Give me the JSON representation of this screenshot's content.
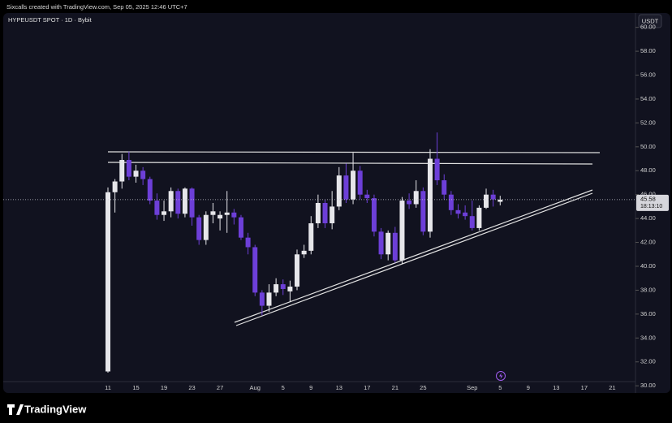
{
  "header": {
    "credit": "Sixcalls created with TradingView.com, Sep 05, 2025 12:46 UTC+7",
    "currency": "USDT",
    "logo": "TradingView"
  },
  "chart_data": {
    "type": "candlestick",
    "title": "HYPEUSDT SPOT · 1D · Bybit",
    "categories": [
      "11",
      null,
      null,
      null,
      "15",
      null,
      null,
      null,
      "19",
      null,
      null,
      null,
      "23",
      null,
      null,
      null,
      "27",
      null,
      null,
      null,
      null,
      "Aug",
      null,
      null,
      null,
      "5",
      null,
      null,
      null,
      "9",
      null,
      null,
      null,
      "13",
      null,
      null,
      null,
      "17",
      null,
      null,
      null,
      "21",
      null,
      null,
      null,
      "25",
      null,
      null,
      null,
      null,
      null,
      null,
      "Sep",
      null,
      null,
      null,
      "5",
      null,
      null,
      null,
      "9",
      null,
      null,
      null,
      "13",
      null,
      null,
      null,
      "17",
      null,
      null,
      null,
      "21"
    ],
    "series": {
      "open": [
        31.2,
        46.2,
        47.1,
        48.9,
        47.5,
        48.0,
        47.3,
        45.5,
        44.3,
        44.6,
        46.3,
        44.4,
        46.5,
        44.1,
        42.2,
        44.3,
        44.0,
        44.3,
        44.5,
        44.1,
        42.4,
        41.6,
        37.8,
        36.7,
        37.8,
        38.5,
        37.9,
        38.3,
        41.0,
        41.3,
        43.6,
        45.3,
        43.6,
        45.0,
        47.6,
        45.6,
        48.0,
        46.0,
        45.7,
        42.9,
        41.0,
        42.8,
        40.5,
        45.5,
        45.2,
        46.3,
        42.9,
        49.0,
        47.2,
        46.0,
        44.7,
        44.5,
        44.2,
        43.2,
        44.9,
        46.0,
        45.4,
        null,
        null,
        null,
        null,
        null,
        null,
        null,
        null,
        null,
        null,
        null,
        null,
        null,
        null,
        null,
        null
      ],
      "high": [
        46.6,
        47.3,
        49.4,
        49.6,
        48.5,
        48.3,
        47.5,
        46.1,
        45.5,
        46.6,
        46.5,
        46.6,
        46.6,
        44.3,
        44.6,
        45.3,
        44.6,
        46.3,
        44.8,
        44.3,
        42.8,
        41.8,
        38.0,
        38.5,
        39.0,
        38.9,
        38.8,
        41.4,
        41.8,
        44.2,
        46.0,
        45.6,
        46.3,
        48.3,
        48.6,
        49.5,
        48.4,
        46.4,
        46.0,
        43.2,
        43.0,
        43.3,
        45.8,
        46.1,
        47.2,
        46.6,
        49.8,
        51.2,
        47.7,
        46.3,
        45.2,
        45.1,
        45.5,
        45.1,
        46.5,
        46.4,
        45.9,
        null,
        null,
        null,
        null,
        null,
        null,
        null,
        null,
        null,
        null,
        null,
        null,
        null,
        null,
        null,
        null
      ],
      "low": [
        31.1,
        44.5,
        46.5,
        47.2,
        47.0,
        46.8,
        45.2,
        43.9,
        43.8,
        44.1,
        44.0,
        44.1,
        43.4,
        41.8,
        41.8,
        43.6,
        43.0,
        42.8,
        43.5,
        42.2,
        41.0,
        37.5,
        35.9,
        36.2,
        37.5,
        37.6,
        37.0,
        38.0,
        40.7,
        41.0,
        43.2,
        43.2,
        43.1,
        44.7,
        45.3,
        45.2,
        45.6,
        45.3,
        42.5,
        40.6,
        40.5,
        40.3,
        40.2,
        44.8,
        44.9,
        42.6,
        42.4,
        46.8,
        45.6,
        44.3,
        44.0,
        43.9,
        43.0,
        43.0,
        44.8,
        45.0,
        45.1,
        null,
        null,
        null,
        null,
        null,
        null,
        null,
        null,
        null,
        null,
        null,
        null,
        null,
        null,
        null,
        null
      ],
      "close": [
        46.2,
        47.1,
        48.9,
        47.5,
        48.0,
        47.3,
        45.5,
        44.3,
        44.6,
        46.3,
        44.4,
        46.5,
        44.1,
        42.2,
        44.3,
        44.6,
        44.3,
        44.5,
        44.1,
        42.4,
        41.6,
        37.8,
        36.7,
        37.8,
        38.5,
        38.1,
        38.3,
        41.0,
        41.3,
        43.6,
        45.3,
        43.6,
        45.0,
        47.6,
        45.6,
        48.0,
        46.0,
        45.7,
        42.9,
        41.0,
        42.8,
        40.5,
        45.5,
        45.2,
        46.3,
        42.9,
        49.0,
        47.2,
        46.0,
        44.7,
        44.4,
        44.2,
        43.2,
        44.9,
        46.0,
        45.6,
        45.58,
        null,
        null,
        null,
        null,
        null,
        null,
        null,
        null,
        null,
        null,
        null,
        null,
        null,
        null,
        null,
        null
      ]
    },
    "up_color": "#e6e6ea",
    "down_color": "#6d3fd8",
    "last_price": 45.58,
    "countdown": "18:13:10",
    "ylim": [
      29.4,
      61.2
    ],
    "yticks": [
      {
        "value": 30,
        "label": "30.00"
      },
      {
        "value": 32,
        "label": "32.00"
      },
      {
        "value": 34,
        "label": "34.00"
      },
      {
        "value": 36,
        "label": "36.00"
      },
      {
        "value": 38,
        "label": "38.00"
      },
      {
        "value": 40,
        "label": "40.00"
      },
      {
        "value": 42,
        "label": "42.00"
      },
      {
        "value": 44,
        "label": "44.00"
      },
      {
        "value": 46,
        "label": "46.00"
      },
      {
        "value": 48,
        "label": "48.00"
      },
      {
        "value": 50,
        "label": "50.00"
      },
      {
        "value": 52,
        "label": "52.00"
      },
      {
        "value": 54,
        "label": "54.00"
      },
      {
        "value": 56,
        "label": "56.00"
      },
      {
        "value": 58,
        "label": "58.00"
      },
      {
        "value": 60,
        "label": "60.00"
      }
    ],
    "grid": false
  }
}
